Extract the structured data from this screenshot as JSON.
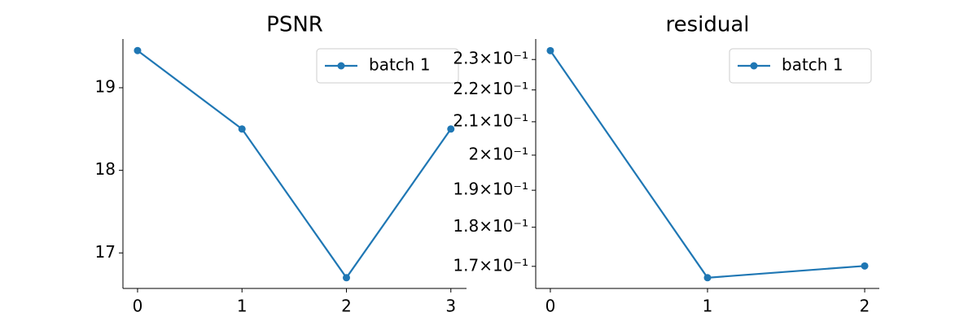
{
  "chart_data": [
    {
      "type": "line",
      "title": "PSNR",
      "x": [
        0,
        1,
        2,
        3
      ],
      "series": [
        {
          "name": "batch 1",
          "color": "#1f77b4",
          "values": [
            19.45,
            18.5,
            16.7,
            18.5
          ]
        }
      ],
      "xlim": [
        -0.14,
        3.15
      ],
      "xticks": [
        0,
        1,
        2,
        3
      ],
      "ylim": [
        16.57,
        19.59
      ],
      "yticks": [
        17,
        18,
        19
      ],
      "log_y": false,
      "legend": "upper right"
    },
    {
      "type": "line",
      "title": "residual",
      "x": [
        0,
        1,
        2
      ],
      "series": [
        {
          "name": "batch 1",
          "color": "#1f77b4",
          "values": [
            0.233,
            0.1672,
            0.1701
          ]
        }
      ],
      "xlim": [
        -0.093,
        2.093
      ],
      "xticks": [
        0,
        1,
        2
      ],
      "ylim": [
        0.1646,
        0.237
      ],
      "yticks": [
        {
          "value": 0.17,
          "label": "1.7×10⁻¹"
        },
        {
          "value": 0.18,
          "label": "1.8×10⁻¹"
        },
        {
          "value": 0.19,
          "label": "1.9×10⁻¹"
        },
        {
          "value": 0.2,
          "label": "2×10⁻¹"
        },
        {
          "value": 0.21,
          "label": "2.1×10⁻¹"
        },
        {
          "value": 0.22,
          "label": "2.2×10⁻¹"
        },
        {
          "value": 0.23,
          "label": "2.3×10⁻¹"
        }
      ],
      "log_y": true,
      "legend": "upper right"
    }
  ]
}
